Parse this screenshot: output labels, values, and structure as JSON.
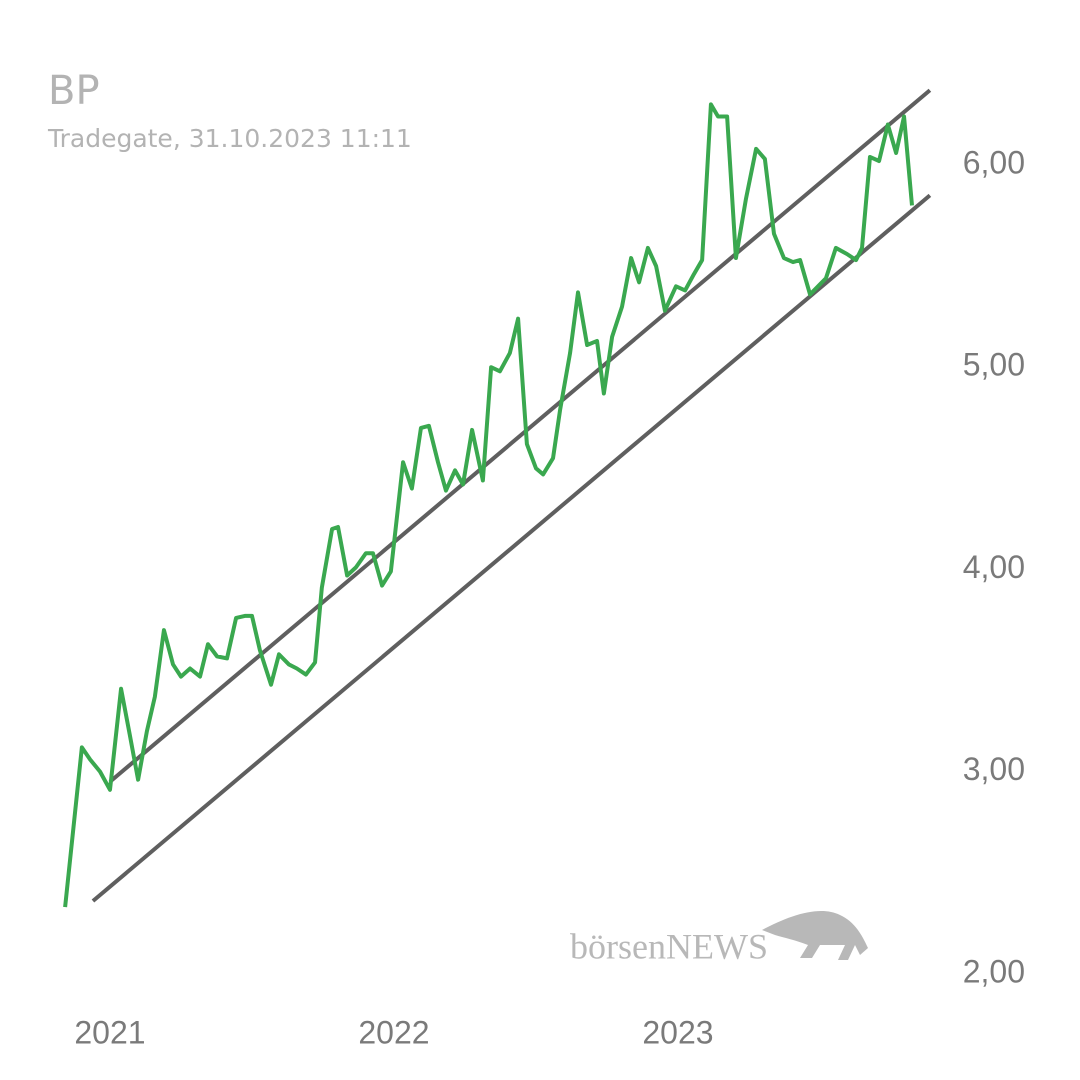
{
  "chart_data": {
    "type": "line",
    "title": "BP",
    "subtitle": "Tradegate, 31.10.2023 11:11",
    "watermark": "börsenNEWS",
    "x": [
      2020.842,
      2020.901,
      2020.93,
      2020.965,
      2021.0,
      2021.039,
      2021.07,
      2021.099,
      2021.13,
      2021.158,
      2021.19,
      2021.222,
      2021.25,
      2021.282,
      2021.317,
      2021.345,
      2021.377,
      2021.412,
      2021.444,
      2021.475,
      2021.5,
      2021.528,
      2021.567,
      2021.595,
      2021.63,
      2021.658,
      2021.69,
      2021.722,
      2021.746,
      2021.782,
      2021.803,
      2021.835,
      2021.866,
      2021.901,
      2021.926,
      2021.958,
      2021.989,
      2022.032,
      2022.063,
      2022.095,
      2022.123,
      2022.155,
      2022.183,
      2022.215,
      2022.243,
      2022.275,
      2022.313,
      2022.342,
      2022.373,
      2022.408,
      2022.437,
      2022.468,
      2022.5,
      2022.525,
      2022.56,
      2022.585,
      2022.62,
      2022.648,
      2022.68,
      2022.715,
      2022.739,
      2022.768,
      2022.803,
      2022.835,
      2022.863,
      2022.894,
      2022.923,
      2022.954,
      2022.993,
      2023.025,
      2023.056,
      2023.085,
      2023.116,
      2023.141,
      2023.173,
      2023.204,
      2023.239,
      2023.275,
      2023.306,
      2023.338,
      2023.373,
      2023.405,
      2023.43,
      2023.465,
      2023.521,
      2023.556,
      2023.595,
      2023.627,
      2023.648,
      2023.676,
      2023.708,
      2023.739,
      2023.768,
      2023.796,
      2023.824
    ],
    "series": [
      {
        "name": "BP",
        "color": "#3aa84f",
        "values": [
          2.33,
          3.12,
          3.06,
          3.0,
          2.91,
          3.41,
          3.18,
          2.96,
          3.2,
          3.37,
          3.7,
          3.53,
          3.47,
          3.51,
          3.47,
          3.63,
          3.57,
          3.56,
          3.76,
          3.77,
          3.77,
          3.6,
          3.43,
          3.58,
          3.53,
          3.51,
          3.48,
          3.54,
          3.91,
          4.2,
          4.21,
          3.97,
          4.01,
          4.08,
          4.08,
          3.92,
          3.99,
          4.53,
          4.4,
          4.7,
          4.71,
          4.53,
          4.39,
          4.49,
          4.42,
          4.69,
          4.44,
          5.0,
          4.98,
          5.07,
          5.24,
          4.62,
          4.5,
          4.47,
          4.55,
          4.79,
          5.07,
          5.37,
          5.11,
          5.13,
          4.87,
          5.15,
          5.3,
          5.54,
          5.42,
          5.59,
          5.5,
          5.28,
          5.4,
          5.38,
          5.46,
          5.53,
          6.3,
          6.24,
          6.24,
          5.54,
          5.83,
          6.08,
          6.03,
          5.66,
          5.54,
          5.52,
          5.53,
          5.36,
          5.44,
          5.59,
          5.56,
          5.53,
          5.59,
          6.04,
          6.02,
          6.2,
          6.06,
          6.24,
          5.8
        ]
      }
    ],
    "trendlines": [
      {
        "color": "#5f5f5f",
        "x": [
          2020.94,
          2023.887
        ],
        "values": [
          2.36,
          5.85
        ]
      },
      {
        "color": "#5f5f5f",
        "x": [
          2021.0,
          2023.887
        ],
        "values": [
          2.95,
          6.37
        ]
      }
    ],
    "xlim": [
      2020.824,
      2023.905
    ],
    "xticks": [
      2021,
      2022,
      2023
    ],
    "ylim": [
      1.92,
      6.47
    ],
    "yticks": [
      {
        "value": 2,
        "label": "2,00"
      },
      {
        "value": 3,
        "label": "3,00"
      },
      {
        "value": 4,
        "label": "4,00"
      },
      {
        "value": 5,
        "label": "5,00"
      },
      {
        "value": 6,
        "label": "6,00"
      }
    ],
    "grid": false
  }
}
